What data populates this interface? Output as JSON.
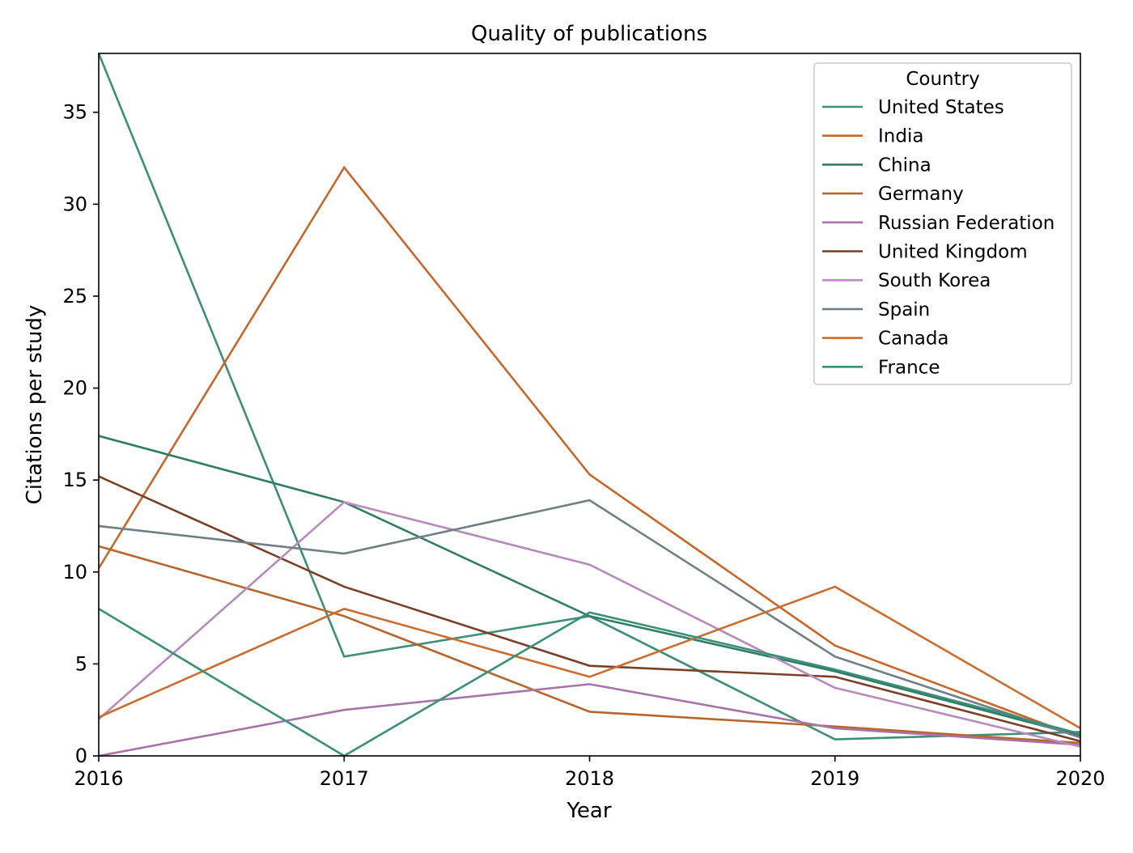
{
  "chart_data": {
    "type": "line",
    "title": "Quality of publications",
    "xlabel": "Year",
    "ylabel": "Citations per study",
    "x": [
      2016,
      2017,
      2018,
      2019,
      2020
    ],
    "xlim": [
      2016,
      2020
    ],
    "ylim": [
      0,
      38.2
    ],
    "x_ticks": [
      "2016",
      "2017",
      "2018",
      "2019",
      "2020"
    ],
    "y_ticks": [
      "0",
      "5",
      "10",
      "15",
      "20",
      "25",
      "30",
      "35"
    ],
    "grid": false,
    "legend": {
      "title": "Country",
      "placement": "top-right"
    },
    "series": [
      {
        "name": "United States",
        "color": "#3d8f78",
        "values": [
          38.2,
          5.4,
          7.6,
          0.9,
          1.3
        ]
      },
      {
        "name": "India",
        "color": "#c8672a",
        "values": [
          10.2,
          32.0,
          15.3,
          6.0,
          1.0
        ]
      },
      {
        "name": "China",
        "color": "#2f7d65",
        "values": [
          17.4,
          13.8,
          7.6,
          4.6,
          1.1
        ]
      },
      {
        "name": "Germany",
        "color": "#b8652c",
        "values": [
          11.4,
          7.6,
          2.4,
          1.6,
          0.7
        ]
      },
      {
        "name": "Russian Federation",
        "color": "#a774a8",
        "values": [
          0.0,
          2.5,
          3.9,
          1.5,
          0.6
        ]
      },
      {
        "name": "United Kingdom",
        "color": "#7a3f28",
        "values": [
          15.2,
          9.2,
          4.9,
          4.3,
          0.8
        ]
      },
      {
        "name": "South Korea",
        "color": "#b88bbd",
        "values": [
          2.0,
          13.8,
          10.4,
          3.7,
          0.5
        ]
      },
      {
        "name": "Spain",
        "color": "#6f7f86",
        "values": [
          12.5,
          11.0,
          13.9,
          5.4,
          1.0
        ]
      },
      {
        "name": "Canada",
        "color": "#cc6d2e",
        "values": [
          2.1,
          8.0,
          4.3,
          9.2,
          1.5
        ]
      },
      {
        "name": "France",
        "color": "#3a9077",
        "values": [
          8.0,
          0.0,
          7.8,
          4.7,
          1.2
        ]
      }
    ]
  }
}
